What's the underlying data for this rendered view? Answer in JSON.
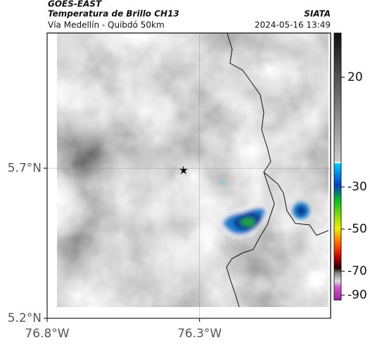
{
  "header": {
    "source": "GOES-EAST",
    "title": "Temperatura de Brillo CH13",
    "subtitle": "Vía Medellín - Quibdó 50km",
    "brand": "SIATA",
    "timestamp": "2024-05-16 13:49"
  },
  "map": {
    "xlim": [
      -76.8,
      -75.87
    ],
    "ylim": [
      5.2,
      6.15
    ],
    "xticks": [
      {
        "value": -76.8,
        "label": "76.8°W"
      },
      {
        "value": -76.3,
        "label": "76.3°W"
      }
    ],
    "yticks": [
      {
        "value": 5.7,
        "label": "5.7°N"
      },
      {
        "value": 5.2,
        "label": "5.2°N"
      }
    ],
    "grid": true
  },
  "colorbar": {
    "ticks": [
      20,
      -30,
      -50,
      -70,
      -90
    ]
  }
}
